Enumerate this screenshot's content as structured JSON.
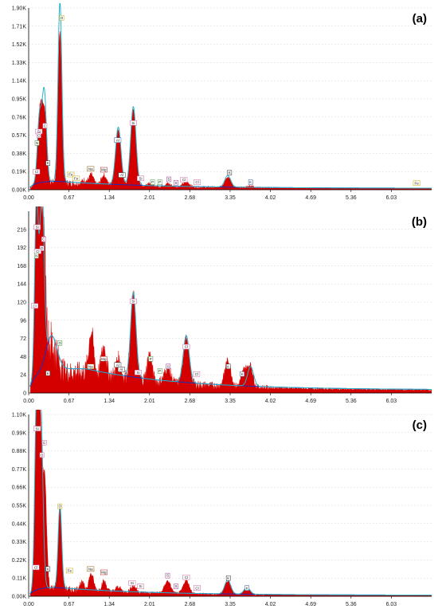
{
  "colors": {
    "spectrum": "#d40000",
    "fit": "#29b3c7",
    "background_fit": "#1a2fbf",
    "axis": "#000000",
    "grid": "#d8d8d8"
  },
  "chart_data": [
    {
      "type": "area",
      "panel_label": "(a)",
      "x_ticks": [
        "0.00",
        "0.67",
        "1.34",
        "2.01",
        "2.68",
        "3.35",
        "4.02",
        "4.69",
        "5.36",
        "6.03"
      ],
      "x_tick_values": [
        0,
        0.67,
        1.34,
        2.01,
        2.68,
        3.35,
        4.02,
        4.69,
        5.36,
        6.03
      ],
      "y_ticks": [
        "0.00K",
        "0.19K",
        "0.38K",
        "0.57K",
        "0.76K",
        "0.95K",
        "1.14K",
        "1.33K",
        "1.52K",
        "1.71K",
        "1.90K"
      ],
      "y_tick_values": [
        0,
        190,
        380,
        570,
        760,
        950,
        1140,
        1330,
        1520,
        1710,
        1900
      ],
      "xlim": [
        0,
        6.7
      ],
      "ylim": [
        0,
        1900
      ],
      "peaks": [
        {
          "x": 0.18,
          "h": 650,
          "w": 0.035
        },
        {
          "x": 0.23,
          "h": 480,
          "w": 0.03
        },
        {
          "x": 0.28,
          "h": 580,
          "w": 0.03
        },
        {
          "x": 0.52,
          "h": 1600,
          "w": 0.03
        },
        {
          "x": 0.93,
          "h": 40,
          "w": 0.04
        },
        {
          "x": 1.04,
          "h": 100,
          "w": 0.035
        },
        {
          "x": 1.25,
          "h": 100,
          "w": 0.04
        },
        {
          "x": 1.49,
          "h": 580,
          "w": 0.045
        },
        {
          "x": 1.74,
          "h": 790,
          "w": 0.045
        },
        {
          "x": 2.01,
          "h": 40,
          "w": 0.04
        },
        {
          "x": 2.31,
          "h": 30,
          "w": 0.05
        },
        {
          "x": 2.62,
          "h": 55,
          "w": 0.05
        },
        {
          "x": 3.31,
          "h": 110,
          "w": 0.05
        },
        {
          "x": 3.69,
          "h": 20,
          "w": 0.05
        }
      ],
      "fit_peaks": [
        {
          "x": 0.18,
          "h": 690,
          "w": 0.035
        },
        {
          "x": 0.26,
          "h": 930,
          "w": 0.035
        },
        {
          "x": 0.52,
          "h": 1880,
          "w": 0.032
        },
        {
          "x": 1.49,
          "h": 600,
          "w": 0.045
        },
        {
          "x": 1.74,
          "h": 820,
          "w": 0.045
        },
        {
          "x": 3.31,
          "h": 120,
          "w": 0.05
        }
      ],
      "background": {
        "peak": 90,
        "peak_x": 0.45,
        "tail": 15
      },
      "annotations": [
        {
          "text": "Si",
          "x": 0.17,
          "y": 600,
          "color": "#d060a0"
        },
        {
          "text": "O",
          "x": 0.17,
          "y": 560,
          "color": "#d060a0"
        },
        {
          "text": "C",
          "x": 0.27,
          "y": 660,
          "color": "#d060a0"
        },
        {
          "text": "N",
          "x": 0.14,
          "y": 480,
          "color": "#3a9a3a"
        },
        {
          "text": "Cl",
          "x": 0.13,
          "y": 180,
          "color": "#d060a0"
        },
        {
          "text": "K",
          "x": 0.32,
          "y": 270,
          "color": "#2a2a2a"
        },
        {
          "text": "O",
          "x": 0.55,
          "y": 1790,
          "color": "#c8a800"
        },
        {
          "text": "Fe",
          "x": 0.7,
          "y": 150,
          "color": "#c8a800"
        },
        {
          "text": "Fe",
          "x": 0.79,
          "y": 110,
          "color": "#c8a800"
        },
        {
          "text": "Na",
          "x": 1.03,
          "y": 210,
          "color": "#8a5a00"
        },
        {
          "text": "Mg",
          "x": 1.25,
          "y": 200,
          "color": "#aa2020"
        },
        {
          "text": "Al",
          "x": 1.48,
          "y": 510,
          "color": "#2a5a9a"
        },
        {
          "text": "Al",
          "x": 1.55,
          "y": 145,
          "color": "#2a2a2a"
        },
        {
          "text": "Si",
          "x": 1.74,
          "y": 690,
          "color": "#d060a0"
        },
        {
          "text": "Si",
          "x": 1.86,
          "y": 110,
          "color": "#d060a0"
        },
        {
          "text": "P",
          "x": 2.06,
          "y": 70,
          "color": "#3a9a3a"
        },
        {
          "text": "P",
          "x": 2.18,
          "y": 70,
          "color": "#3a9a3a"
        },
        {
          "text": "S",
          "x": 2.33,
          "y": 100,
          "color": "#a0308a"
        },
        {
          "text": "S",
          "x": 2.45,
          "y": 65,
          "color": "#a0308a"
        },
        {
          "text": "Cl",
          "x": 2.58,
          "y": 95,
          "color": "#d060a0"
        },
        {
          "text": "Cl",
          "x": 2.8,
          "y": 70,
          "color": "#d060a0"
        },
        {
          "text": "K",
          "x": 3.34,
          "y": 170,
          "color": "#2a2a2a"
        },
        {
          "text": "K",
          "x": 3.69,
          "y": 70,
          "color": "#2a5a9a"
        },
        {
          "text": "Fe",
          "x": 6.45,
          "y": 60,
          "color": "#c8a800"
        }
      ]
    },
    {
      "type": "area",
      "panel_label": "(b)",
      "x_ticks": [
        "0.00",
        "0.67",
        "1.34",
        "2.01",
        "2.68",
        "3.35",
        "4.02",
        "4.69",
        "5.36",
        "6.03"
      ],
      "x_tick_values": [
        0,
        0.67,
        1.34,
        2.01,
        2.68,
        3.35,
        4.02,
        4.69,
        5.36,
        6.03
      ],
      "y_ticks": [
        "0",
        "24",
        "48",
        "72",
        "96",
        "120",
        "144",
        "168",
        "192",
        "216"
      ],
      "y_tick_values": [
        0,
        24,
        48,
        72,
        96,
        120,
        144,
        168,
        192,
        216
      ],
      "xlim": [
        0,
        6.7
      ],
      "ylim": [
        0,
        240
      ],
      "peaks": [
        {
          "x": 0.13,
          "h": 210,
          "w": 0.03
        },
        {
          "x": 0.18,
          "h": 200,
          "w": 0.035
        },
        {
          "x": 0.25,
          "h": 160,
          "w": 0.035
        },
        {
          "x": 1.04,
          "h": 55,
          "w": 0.04
        },
        {
          "x": 1.25,
          "h": 38,
          "w": 0.04
        },
        {
          "x": 1.49,
          "h": 25,
          "w": 0.04
        },
        {
          "x": 1.74,
          "h": 110,
          "w": 0.045
        },
        {
          "x": 2.01,
          "h": 36,
          "w": 0.04
        },
        {
          "x": 2.31,
          "h": 20,
          "w": 0.05
        },
        {
          "x": 2.62,
          "h": 60,
          "w": 0.05
        },
        {
          "x": 3.31,
          "h": 34,
          "w": 0.05
        },
        {
          "x": 3.59,
          "h": 24,
          "w": 0.05
        },
        {
          "x": 3.69,
          "h": 26,
          "w": 0.04
        }
      ],
      "fit_peaks": [
        {
          "x": 0.13,
          "h": 235,
          "w": 0.03
        },
        {
          "x": 0.22,
          "h": 240,
          "w": 0.035
        },
        {
          "x": 1.74,
          "h": 112,
          "w": 0.045
        },
        {
          "x": 2.62,
          "h": 62,
          "w": 0.05
        },
        {
          "x": 3.69,
          "h": 26,
          "w": 0.05
        }
      ],
      "background": {
        "peak": 32,
        "peak_x": 0.95,
        "tail": 4,
        "shoulder": {
          "x": 0.38,
          "h": 45
        }
      },
      "annotations": [
        {
          "text": "Si",
          "x": 0.14,
          "y": 218,
          "color": "#d060a0"
        },
        {
          "text": "C",
          "x": 0.25,
          "y": 202,
          "color": "#d060a0"
        },
        {
          "text": "O",
          "x": 0.22,
          "y": 190,
          "color": "#d060a0"
        },
        {
          "text": "Cl",
          "x": 0.15,
          "y": 186,
          "color": "#d060a0"
        },
        {
          "text": "N",
          "x": 0.13,
          "y": 180,
          "color": "#3a9a3a"
        },
        {
          "text": "Cl",
          "x": 0.1,
          "y": 114,
          "color": "#d060a0"
        },
        {
          "text": "O",
          "x": 0.52,
          "y": 65,
          "color": "#3a9a3a"
        },
        {
          "text": "K",
          "x": 0.32,
          "y": 25,
          "color": "#2a2a2a"
        },
        {
          "text": "Na",
          "x": 1.03,
          "y": 34,
          "color": "#8a5a00"
        },
        {
          "text": "Mg",
          "x": 1.25,
          "y": 44,
          "color": "#aa2020"
        },
        {
          "text": "Al",
          "x": 1.48,
          "y": 36,
          "color": "#2a2a2a"
        },
        {
          "text": "Al",
          "x": 1.54,
          "y": 30,
          "color": "#2a2a2a"
        },
        {
          "text": "Si",
          "x": 1.74,
          "y": 120,
          "color": "#d060a0"
        },
        {
          "text": "Si",
          "x": 1.82,
          "y": 26,
          "color": "#d060a0"
        },
        {
          "text": "P",
          "x": 2.03,
          "y": 44,
          "color": "#3a9a3a"
        },
        {
          "text": "P",
          "x": 2.18,
          "y": 28,
          "color": "#3a9a3a"
        },
        {
          "text": "S",
          "x": 2.32,
          "y": 34,
          "color": "#a0308a"
        },
        {
          "text": "Cl",
          "x": 2.62,
          "y": 60,
          "color": "#d060a0"
        },
        {
          "text": "Cl",
          "x": 2.79,
          "y": 24,
          "color": "#d060a0"
        },
        {
          "text": "K",
          "x": 3.32,
          "y": 34,
          "color": "#2a2a2a"
        },
        {
          "text": "K",
          "x": 3.55,
          "y": 24,
          "color": "#2a5a9a"
        }
      ]
    },
    {
      "type": "area",
      "panel_label": "(c)",
      "x_ticks": [
        "0.00",
        "0.67",
        "1.34",
        "2.01",
        "2.68",
        "3.35",
        "4.02",
        "4.69",
        "5.36",
        "6.03"
      ],
      "x_tick_values": [
        0,
        0.67,
        1.34,
        2.01,
        2.68,
        3.35,
        4.02,
        4.69,
        5.36,
        6.03
      ],
      "y_ticks": [
        "0.00K",
        "0.11K",
        "0.22K",
        "0.33K",
        "0.44K",
        "0.55K",
        "0.66K",
        "0.77K",
        "0.88K",
        "0.99K",
        "1.10K"
      ],
      "y_tick_values": [
        0,
        110,
        220,
        330,
        440,
        550,
        660,
        770,
        880,
        990,
        1100
      ],
      "xlim": [
        0,
        6.7
      ],
      "ylim": [
        0,
        1100
      ],
      "peaks": [
        {
          "x": 0.13,
          "h": 1000,
          "w": 0.03
        },
        {
          "x": 0.19,
          "h": 960,
          "w": 0.035
        },
        {
          "x": 0.27,
          "h": 620,
          "w": 0.03
        },
        {
          "x": 0.52,
          "h": 490,
          "w": 0.03
        },
        {
          "x": 0.88,
          "h": 45,
          "w": 0.04
        },
        {
          "x": 1.04,
          "h": 100,
          "w": 0.04
        },
        {
          "x": 1.25,
          "h": 60,
          "w": 0.04
        },
        {
          "x": 1.49,
          "h": 30,
          "w": 0.04
        },
        {
          "x": 1.74,
          "h": 40,
          "w": 0.045
        },
        {
          "x": 2.31,
          "h": 75,
          "w": 0.05
        },
        {
          "x": 2.62,
          "h": 80,
          "w": 0.05
        },
        {
          "x": 3.31,
          "h": 80,
          "w": 0.05
        },
        {
          "x": 3.63,
          "h": 40,
          "w": 0.05
        }
      ],
      "fit_peaks": [
        {
          "x": 0.13,
          "h": 1090,
          "w": 0.03
        },
        {
          "x": 0.2,
          "h": 1100,
          "w": 0.035
        },
        {
          "x": 0.52,
          "h": 500,
          "w": 0.03
        },
        {
          "x": 3.31,
          "h": 85,
          "w": 0.05
        },
        {
          "x": 3.63,
          "h": 42,
          "w": 0.05
        }
      ],
      "background": {
        "peak": 55,
        "peak_x": 0.4,
        "tail": 6
      },
      "annotations": [
        {
          "text": "Si",
          "x": 0.14,
          "y": 1010,
          "color": "#d060a0"
        },
        {
          "text": "C",
          "x": 0.26,
          "y": 925,
          "color": "#d060a0"
        },
        {
          "text": "O",
          "x": 0.22,
          "y": 850,
          "color": "#d060a0"
        },
        {
          "text": "Cl",
          "x": 0.12,
          "y": 170,
          "color": "#d060a0"
        },
        {
          "text": "K",
          "x": 0.32,
          "y": 160,
          "color": "#2a2a2a"
        },
        {
          "text": "O",
          "x": 0.52,
          "y": 540,
          "color": "#c8a800"
        },
        {
          "text": "Fe",
          "x": 0.68,
          "y": 150,
          "color": "#c8a800"
        },
        {
          "text": "Na",
          "x": 1.03,
          "y": 160,
          "color": "#8a5a00"
        },
        {
          "text": "Mg",
          "x": 1.25,
          "y": 140,
          "color": "#aa2020"
        },
        {
          "text": "Si",
          "x": 1.72,
          "y": 75,
          "color": "#d060a0"
        },
        {
          "text": "Si",
          "x": 1.86,
          "y": 55,
          "color": "#d060a0"
        },
        {
          "text": "S",
          "x": 2.31,
          "y": 120,
          "color": "#a0308a"
        },
        {
          "text": "S",
          "x": 2.45,
          "y": 55,
          "color": "#a0308a"
        },
        {
          "text": "Cl",
          "x": 2.62,
          "y": 110,
          "color": "#d060a0"
        },
        {
          "text": "Cl",
          "x": 2.8,
          "y": 45,
          "color": "#d060a0"
        },
        {
          "text": "K",
          "x": 3.32,
          "y": 105,
          "color": "#2a2a2a"
        },
        {
          "text": "K",
          "x": 3.63,
          "y": 45,
          "color": "#2a5a9a"
        }
      ]
    }
  ]
}
